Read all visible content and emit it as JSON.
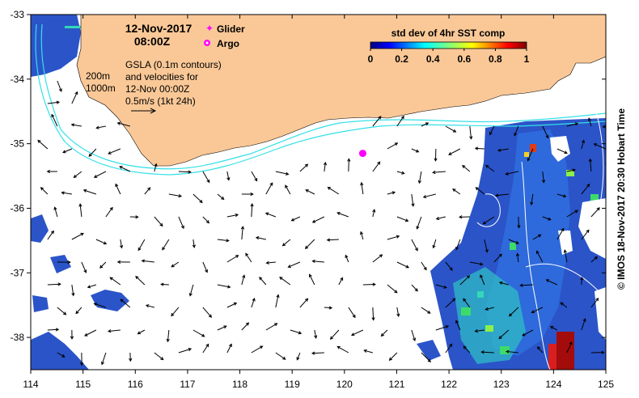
{
  "title": {
    "date": "12-Nov-2017",
    "time": "08:00Z"
  },
  "legend": {
    "glider_label": "Glider",
    "argo_label": "Argo"
  },
  "gsla_note": [
    "GSLA (0.1m contours)",
    "and velocities for",
    "12-Nov 00:00Z",
    "0.5m/s (1kt 24h)"
  ],
  "isobath_labels": [
    "200m",
    "1000m"
  ],
  "colorbar": {
    "title": "std dev of 4hr SST comp",
    "ticks": [
      "0",
      "0.2",
      "0.4",
      "0.6",
      "0.8",
      "1"
    ]
  },
  "axes": {
    "lon_ticks": [
      "114",
      "115",
      "116",
      "117",
      "118",
      "119",
      "120",
      "121",
      "122",
      "123",
      "124",
      "125"
    ],
    "lat_ticks": [
      "-33",
      "-34",
      "-35",
      "-36",
      "-37",
      "-38"
    ],
    "lon_range": [
      114,
      125
    ],
    "lat_range": [
      -38.5,
      -33
    ]
  },
  "argo": {
    "lon": 120.35,
    "lat": -35.15
  },
  "credit": "© IMOS 18-Nov-2017 20:30 Hobart Time",
  "colors": {
    "land": "#FAC897",
    "isobath": "#33E0E8",
    "argo": "#FF00FF",
    "gsla_contour": "#FFFFFF"
  }
}
